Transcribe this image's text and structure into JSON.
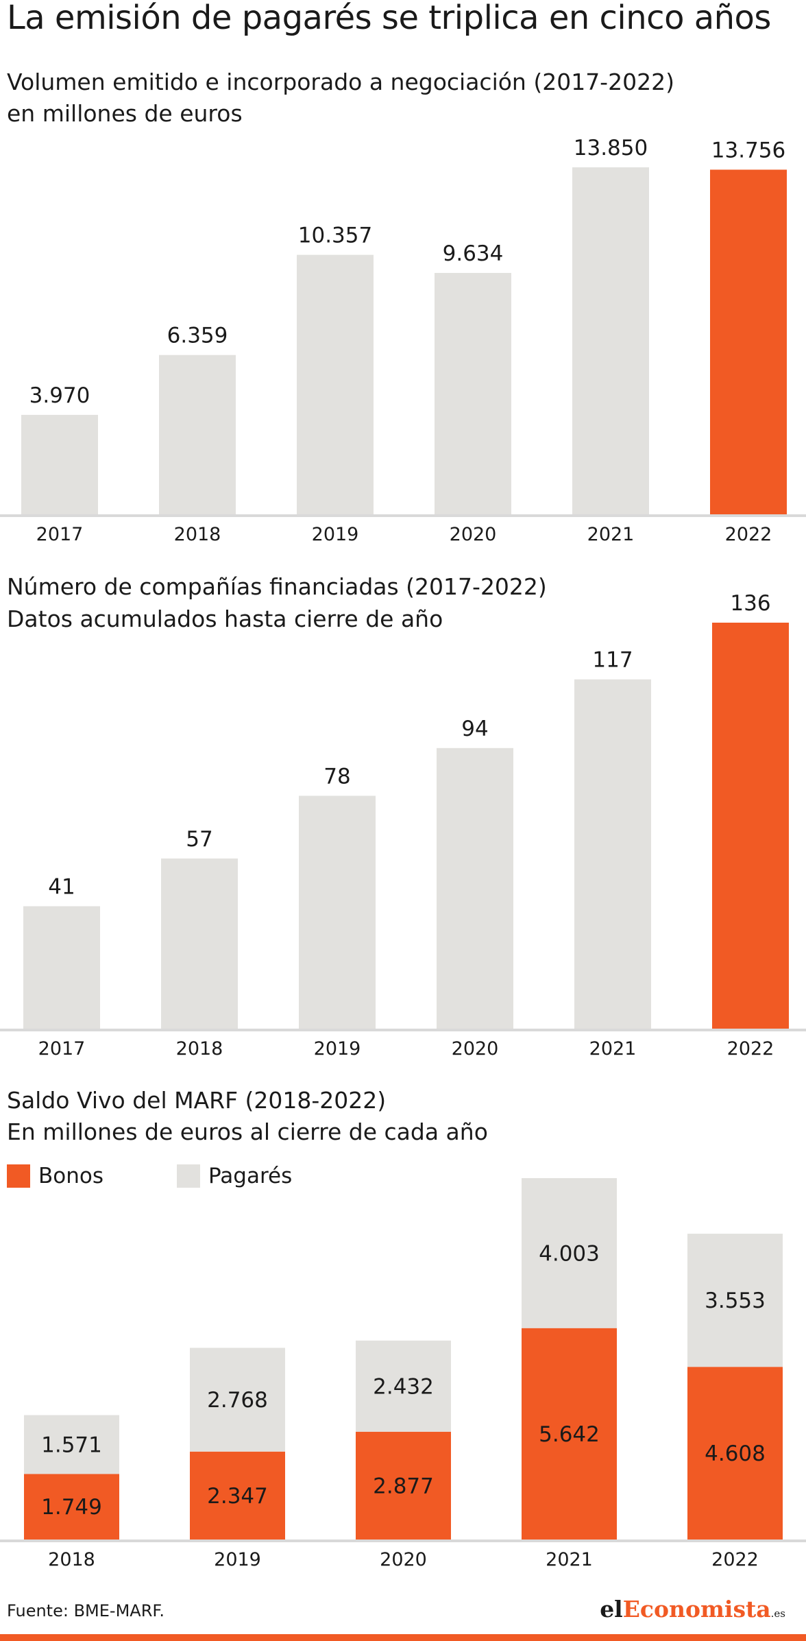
{
  "title": "La emisión de pagarés se triplica en cinco años",
  "colors": {
    "highlight": "#f15a24",
    "bar": "#e2e1de",
    "axis": "#d9d9d9"
  },
  "chart_data": [
    {
      "type": "bar",
      "subtitle_line1": "Volumen emitido e incorporado a negociación (2017-2022)",
      "subtitle_line2": "en millones de euros",
      "categories": [
        "2017",
        "2018",
        "2019",
        "2020",
        "2021",
        "2022"
      ],
      "values": [
        3970,
        6359,
        10357,
        9634,
        13850,
        13756
      ],
      "labels": [
        "3.970",
        "6.359",
        "10.357",
        "9.634",
        "13.850",
        "13.756"
      ],
      "highlight_index": 5,
      "ylim": [
        0,
        13850
      ],
      "grid": false
    },
    {
      "type": "bar",
      "subtitle_line1": "Número de compañías financiadas (2017-2022)",
      "subtitle_line2": "Datos acumulados hasta cierre de año",
      "categories": [
        "2017",
        "2018",
        "2019",
        "2020",
        "2021",
        "2022"
      ],
      "values": [
        41,
        57,
        78,
        94,
        117,
        136
      ],
      "labels": [
        "41",
        "57",
        "78",
        "94",
        "117",
        "136"
      ],
      "highlight_index": 5,
      "ylim": [
        0,
        136
      ],
      "grid": false
    },
    {
      "type": "bar",
      "stacked": true,
      "subtitle_line1": "Saldo Vivo del MARF (2018-2022)",
      "subtitle_line2": "En millones de euros al cierre de cada año",
      "categories": [
        "2018",
        "2019",
        "2020",
        "2021",
        "2022"
      ],
      "series": [
        {
          "name": "Bonos",
          "color": "#f15a24",
          "values": [
            1749,
            2347,
            2877,
            5642,
            4608
          ],
          "labels": [
            "1.749",
            "2.347",
            "2.877",
            "5.642",
            "4.608"
          ]
        },
        {
          "name": "Pagarés",
          "color": "#e2e1de",
          "values": [
            1571,
            2768,
            2432,
            4003,
            3553
          ],
          "labels": [
            "1.571",
            "2.768",
            "2.432",
            "4.003",
            "3.553"
          ]
        }
      ],
      "legend_position": "top-left",
      "ylim": [
        0,
        9645
      ],
      "grid": false
    }
  ],
  "source": "Fuente: BME-MARF.",
  "logo": {
    "part1": "el",
    "part2": "Economista",
    "part3": ".es"
  }
}
